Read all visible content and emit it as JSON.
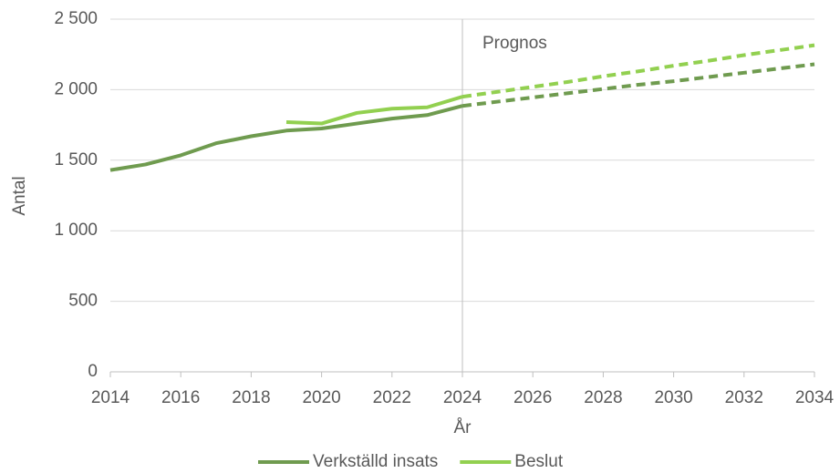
{
  "chart_data": {
    "type": "line",
    "x": [
      2014,
      2015,
      2016,
      2017,
      2018,
      2019,
      2020,
      2021,
      2022,
      2023,
      2024,
      2025,
      2026,
      2027,
      2028,
      2029,
      2030,
      2031,
      2032,
      2033,
      2034
    ],
    "series": [
      {
        "name": "Verkställd insats",
        "color": "#6f9b4f",
        "values": [
          1430,
          1470,
          1535,
          1620,
          1670,
          1710,
          1725,
          1760,
          1795,
          1820,
          1885,
          1915,
          1945,
          1975,
          2005,
          2035,
          2060,
          2090,
          2120,
          2150,
          2180
        ]
      },
      {
        "name": "Beslut",
        "color": "#92d050",
        "values": [
          null,
          null,
          null,
          null,
          null,
          1770,
          1760,
          1835,
          1865,
          1875,
          1950,
          1985,
          2020,
          2055,
          2095,
          2130,
          2170,
          2205,
          2245,
          2280,
          2315
        ]
      }
    ],
    "annotation": {
      "text": "Prognos",
      "x": 2024
    },
    "x_label": "År",
    "y_label": "Antal",
    "xlim": [
      2014,
      2034
    ],
    "xticks": [
      2014,
      2016,
      2018,
      2020,
      2022,
      2024,
      2026,
      2028,
      2030,
      2032,
      2034
    ],
    "ylim": [
      0,
      2500
    ],
    "yticks": [
      0,
      500,
      {
        "value": 1000,
        "label": "1 000"
      },
      {
        "value": 1500,
        "label": "1 500"
      },
      {
        "value": 2000,
        "label": "2 000"
      },
      {
        "value": 2500,
        "label": "2 500"
      }
    ],
    "grid": true,
    "legend": "bottom"
  }
}
